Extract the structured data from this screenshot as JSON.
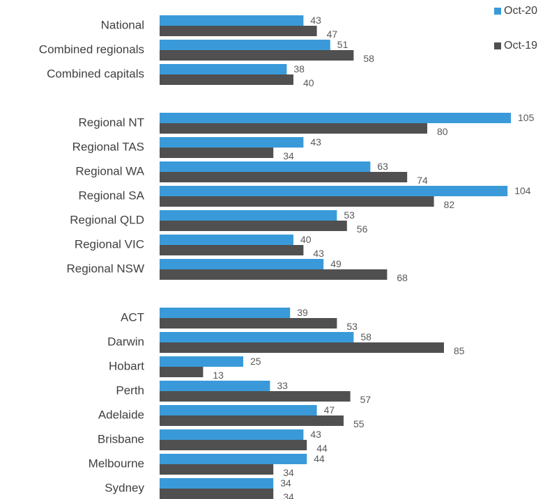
{
  "chart_data": {
    "type": "bar",
    "orientation": "horizontal",
    "categories": [
      "National",
      "Combined regionals",
      "Combined capitals",
      null,
      "Regional NT",
      "Regional TAS",
      "Regional WA",
      "Regional SA",
      "Regional QLD",
      "Regional VIC",
      "Regional NSW",
      null,
      "ACT",
      "Darwin",
      "Hobart",
      "Perth",
      "Adelaide",
      "Brisbane",
      "Melbourne",
      "Sydney"
    ],
    "series": [
      {
        "name": "Oct-20",
        "color": "#3a9ad9",
        "values": [
          43,
          51,
          38,
          null,
          105,
          43,
          63,
          104,
          53,
          40,
          49,
          null,
          39,
          58,
          25,
          33,
          47,
          43,
          44,
          34
        ]
      },
      {
        "name": "Oct-19",
        "color": "#505050",
        "values": [
          47,
          58,
          40,
          null,
          80,
          34,
          74,
          82,
          56,
          43,
          68,
          null,
          53,
          85,
          13,
          57,
          55,
          44,
          34,
          34
        ]
      }
    ],
    "legend": "top-right"
  }
}
